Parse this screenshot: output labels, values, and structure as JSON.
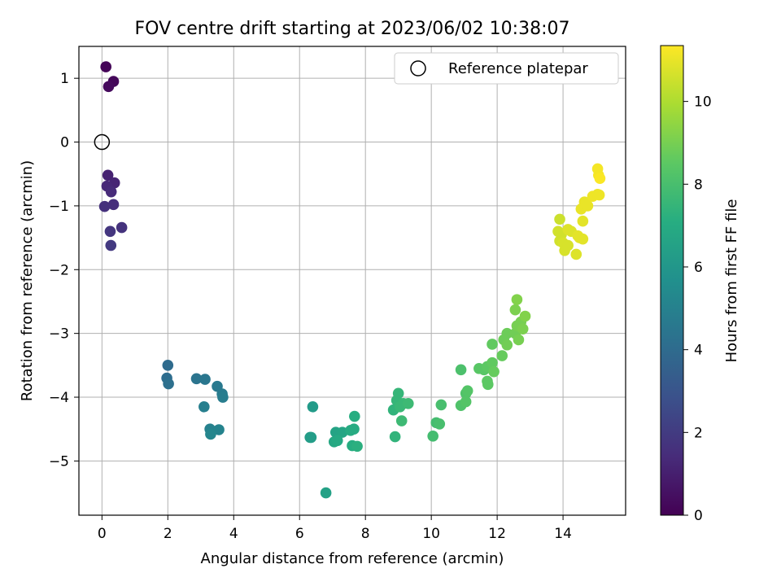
{
  "chart_data": {
    "type": "scatter",
    "title": "FOV centre drift starting at 2023/06/02 10:38:07",
    "xlabel": "Angular distance from reference (arcmin)",
    "ylabel": "Rotation from reference (arcmin)",
    "xlim": [
      -0.7,
      15.9
    ],
    "ylim": [
      -5.85,
      1.5
    ],
    "xticks": [
      0,
      2,
      4,
      6,
      8,
      10,
      12,
      14
    ],
    "yticks": [
      1,
      0,
      -1,
      -2,
      -3,
      -4,
      -5
    ],
    "grid": true,
    "colormap": "viridis",
    "colorbar": {
      "label": "Hours from first FF file",
      "range": [
        0,
        11.35
      ],
      "ticks": [
        0,
        2,
        4,
        6,
        8,
        10
      ]
    },
    "reference": {
      "x": 0,
      "y": 0,
      "label": "Reference platepar"
    },
    "legend": {
      "position": "top-right",
      "entries": [
        "Reference platepar"
      ]
    },
    "points": [
      {
        "x": 0.12,
        "y": 1.18,
        "c": 0.1
      },
      {
        "x": 0.35,
        "y": 0.95,
        "c": 0.2
      },
      {
        "x": 0.2,
        "y": 0.87,
        "c": 0.3
      },
      {
        "x": 0.18,
        "y": -0.52,
        "c": 1.1
      },
      {
        "x": 0.38,
        "y": -0.64,
        "c": 1.2
      },
      {
        "x": 0.15,
        "y": -0.69,
        "c": 1.3
      },
      {
        "x": 0.28,
        "y": -0.78,
        "c": 1.4
      },
      {
        "x": 0.35,
        "y": -0.98,
        "c": 1.5
      },
      {
        "x": 0.08,
        "y": -1.01,
        "c": 1.6
      },
      {
        "x": 0.6,
        "y": -1.34,
        "c": 1.7
      },
      {
        "x": 0.25,
        "y": -1.4,
        "c": 1.8
      },
      {
        "x": 0.27,
        "y": -1.62,
        "c": 1.9
      },
      {
        "x": 2.0,
        "y": -3.5,
        "c": 4.0
      },
      {
        "x": 1.97,
        "y": -3.7,
        "c": 4.1
      },
      {
        "x": 2.02,
        "y": -3.79,
        "c": 4.2
      },
      {
        "x": 2.87,
        "y": -3.71,
        "c": 4.4
      },
      {
        "x": 3.13,
        "y": -3.72,
        "c": 4.5
      },
      {
        "x": 3.5,
        "y": -3.83,
        "c": 4.6
      },
      {
        "x": 3.65,
        "y": -3.95,
        "c": 4.7
      },
      {
        "x": 3.67,
        "y": -4.0,
        "c": 4.8
      },
      {
        "x": 3.1,
        "y": -4.15,
        "c": 4.9
      },
      {
        "x": 3.28,
        "y": -4.5,
        "c": 5.0
      },
      {
        "x": 3.55,
        "y": -4.51,
        "c": 5.1
      },
      {
        "x": 3.3,
        "y": -4.58,
        "c": 5.2
      },
      {
        "x": 6.4,
        "y": -4.15,
        "c": 6.2
      },
      {
        "x": 6.32,
        "y": -4.63,
        "c": 6.3
      },
      {
        "x": 6.35,
        "y": -4.63,
        "c": 6.3
      },
      {
        "x": 6.8,
        "y": -5.5,
        "c": 6.5
      },
      {
        "x": 7.1,
        "y": -4.55,
        "c": 6.6
      },
      {
        "x": 7.3,
        "y": -4.55,
        "c": 6.7
      },
      {
        "x": 7.05,
        "y": -4.7,
        "c": 6.8
      },
      {
        "x": 7.15,
        "y": -4.68,
        "c": 6.9
      },
      {
        "x": 7.55,
        "y": -4.52,
        "c": 7.0
      },
      {
        "x": 7.65,
        "y": -4.5,
        "c": 7.0
      },
      {
        "x": 7.67,
        "y": -4.3,
        "c": 7.1
      },
      {
        "x": 7.6,
        "y": -4.76,
        "c": 7.1
      },
      {
        "x": 7.75,
        "y": -4.77,
        "c": 7.2
      },
      {
        "x": 8.85,
        "y": -4.2,
        "c": 7.4
      },
      {
        "x": 8.9,
        "y": -4.62,
        "c": 7.4
      },
      {
        "x": 9.0,
        "y": -3.94,
        "c": 7.5
      },
      {
        "x": 8.95,
        "y": -4.05,
        "c": 7.5
      },
      {
        "x": 9.05,
        "y": -4.15,
        "c": 7.6
      },
      {
        "x": 9.15,
        "y": -4.1,
        "c": 7.6
      },
      {
        "x": 9.3,
        "y": -4.1,
        "c": 7.7
      },
      {
        "x": 9.1,
        "y": -4.37,
        "c": 7.7
      },
      {
        "x": 10.05,
        "y": -4.61,
        "c": 7.9
      },
      {
        "x": 10.15,
        "y": -4.4,
        "c": 7.9
      },
      {
        "x": 10.25,
        "y": -4.42,
        "c": 8.0
      },
      {
        "x": 10.3,
        "y": -4.12,
        "c": 8.0
      },
      {
        "x": 10.9,
        "y": -3.57,
        "c": 8.1
      },
      {
        "x": 10.9,
        "y": -4.13,
        "c": 8.2
      },
      {
        "x": 11.05,
        "y": -3.94,
        "c": 8.2
      },
      {
        "x": 11.1,
        "y": -3.9,
        "c": 8.3
      },
      {
        "x": 11.05,
        "y": -4.07,
        "c": 8.3
      },
      {
        "x": 11.45,
        "y": -3.55,
        "c": 8.4
      },
      {
        "x": 11.6,
        "y": -3.57,
        "c": 8.4
      },
      {
        "x": 11.7,
        "y": -3.52,
        "c": 8.5
      },
      {
        "x": 11.7,
        "y": -3.75,
        "c": 8.5
      },
      {
        "x": 11.72,
        "y": -3.8,
        "c": 8.5
      },
      {
        "x": 11.85,
        "y": -3.46,
        "c": 8.6
      },
      {
        "x": 11.85,
        "y": -3.17,
        "c": 8.6
      },
      {
        "x": 11.9,
        "y": -3.6,
        "c": 8.7
      },
      {
        "x": 12.15,
        "y": -3.35,
        "c": 8.7
      },
      {
        "x": 12.2,
        "y": -3.1,
        "c": 8.8
      },
      {
        "x": 12.3,
        "y": -3.0,
        "c": 8.8
      },
      {
        "x": 12.3,
        "y": -3.18,
        "c": 8.9
      },
      {
        "x": 12.55,
        "y": -3.0,
        "c": 8.9
      },
      {
        "x": 12.6,
        "y": -2.88,
        "c": 9.0
      },
      {
        "x": 12.65,
        "y": -3.1,
        "c": 9.0
      },
      {
        "x": 12.72,
        "y": -2.82,
        "c": 9.0
      },
      {
        "x": 12.78,
        "y": -2.93,
        "c": 9.1
      },
      {
        "x": 12.55,
        "y": -2.63,
        "c": 9.1
      },
      {
        "x": 12.6,
        "y": -2.47,
        "c": 9.2
      },
      {
        "x": 12.85,
        "y": -2.73,
        "c": 9.2
      },
      {
        "x": 13.9,
        "y": -1.21,
        "c": 10.5
      },
      {
        "x": 13.85,
        "y": -1.4,
        "c": 10.6
      },
      {
        "x": 13.95,
        "y": -1.45,
        "c": 10.6
      },
      {
        "x": 13.9,
        "y": -1.55,
        "c": 10.6
      },
      {
        "x": 14.0,
        "y": -1.58,
        "c": 10.7
      },
      {
        "x": 14.05,
        "y": -1.7,
        "c": 10.7
      },
      {
        "x": 14.15,
        "y": -1.62,
        "c": 10.7
      },
      {
        "x": 14.15,
        "y": -1.37,
        "c": 10.8
      },
      {
        "x": 14.25,
        "y": -1.4,
        "c": 10.8
      },
      {
        "x": 14.4,
        "y": -1.76,
        "c": 10.8
      },
      {
        "x": 14.45,
        "y": -1.47,
        "c": 10.9
      },
      {
        "x": 14.5,
        "y": -1.5,
        "c": 10.9
      },
      {
        "x": 14.6,
        "y": -1.52,
        "c": 10.9
      },
      {
        "x": 14.6,
        "y": -1.24,
        "c": 10.9
      },
      {
        "x": 14.55,
        "y": -1.05,
        "c": 11.0
      },
      {
        "x": 14.65,
        "y": -0.94,
        "c": 11.0
      },
      {
        "x": 14.75,
        "y": -1.0,
        "c": 11.0
      },
      {
        "x": 14.9,
        "y": -0.85,
        "c": 11.1
      },
      {
        "x": 15.05,
        "y": -0.82,
        "c": 11.1
      },
      {
        "x": 15.1,
        "y": -0.83,
        "c": 11.1
      },
      {
        "x": 15.05,
        "y": -0.42,
        "c": 11.2
      },
      {
        "x": 15.08,
        "y": -0.52,
        "c": 11.2
      },
      {
        "x": 15.12,
        "y": -0.57,
        "c": 11.3
      }
    ]
  }
}
